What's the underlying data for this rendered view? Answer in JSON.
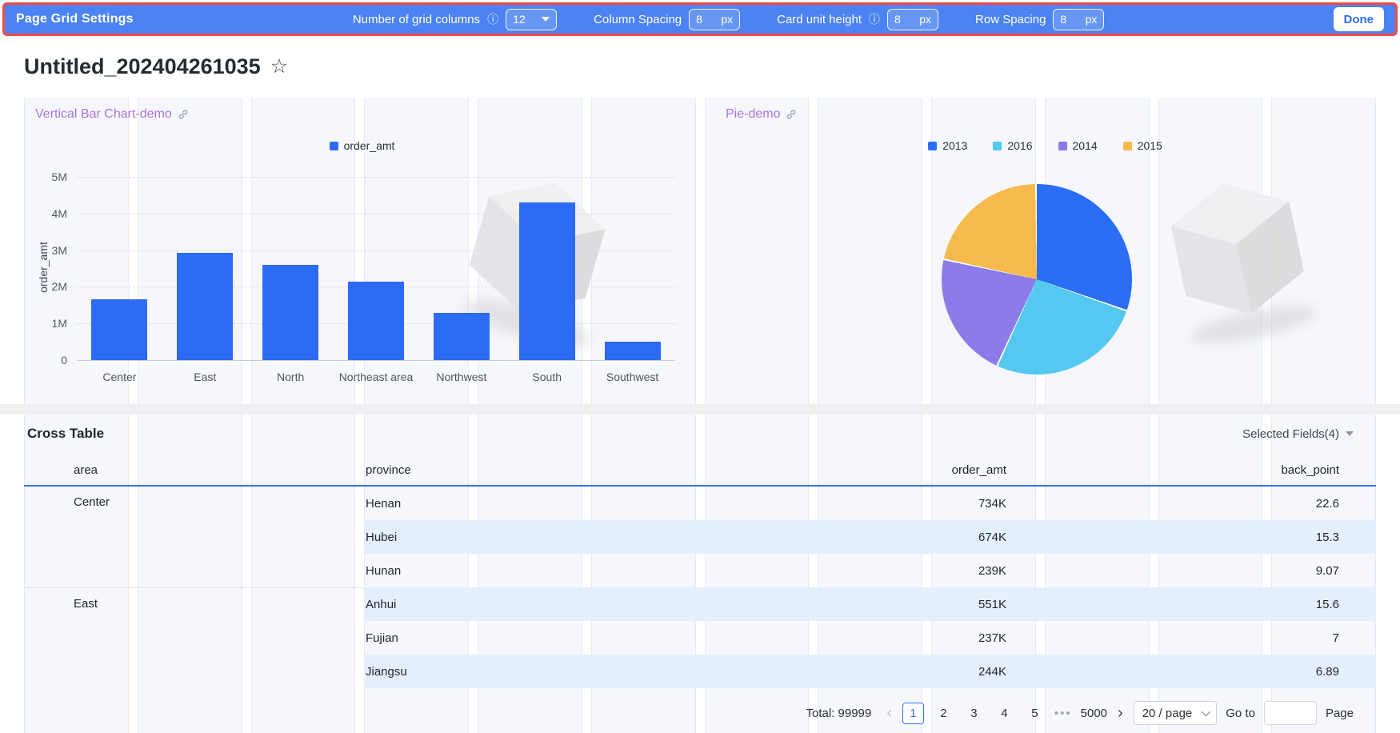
{
  "topbar": {
    "title": "Page Grid Settings",
    "grid_columns_label": "Number of grid columns",
    "grid_columns_value": "12",
    "column_spacing_label": "Column Spacing",
    "column_spacing_value": "8",
    "card_unit_height_label": "Card unit height",
    "card_unit_height_value": "8",
    "row_spacing_label": "Row Spacing",
    "row_spacing_value": "8",
    "unit": "px",
    "info_icon": "ⓘ",
    "done_label": "Done"
  },
  "page": {
    "title": "Untitled_202404261035",
    "star_icon": "☆",
    "grid_column_count": 12
  },
  "chart_data": [
    {
      "type": "bar",
      "title": "Vertical Bar Chart-demo",
      "categories": [
        "Center",
        "East",
        "North",
        "Northeast area",
        "Northwest",
        "South",
        "Southwest"
      ],
      "values": [
        1660000,
        2930000,
        2600000,
        2140000,
        1290000,
        4300000,
        500000
      ],
      "series_name": "order_amt",
      "xlabel": "",
      "ylabel": "order_amt",
      "ylim": [
        0,
        5000000
      ],
      "yticks": [
        "5M",
        "4M",
        "3M",
        "2M",
        "1M",
        "0"
      ],
      "grid": "horizontal dashed",
      "legend_position": "top-center",
      "bar_color": "#2e6bf5"
    },
    {
      "type": "pie",
      "title": "Pie-demo",
      "legend_position": "top-center",
      "series": [
        {
          "name": "2013",
          "percent": 30.5,
          "color": "#2b6df3"
        },
        {
          "name": "2016",
          "percent": 26.5,
          "color": "#54c8f0"
        },
        {
          "name": "2014",
          "percent": 21.5,
          "color": "#8c7be9"
        },
        {
          "name": "2015",
          "percent": 21.5,
          "color": "#f5ba4b"
        }
      ]
    }
  ],
  "table": {
    "title": "Cross Table",
    "selected_fields_label": "Selected Fields(4)",
    "columns": [
      "area",
      "province",
      "order_amt",
      "back_point"
    ],
    "groups": [
      {
        "area": "Center",
        "rows": [
          {
            "province": "Henan",
            "order_amt": "734K",
            "back_point": "22.6"
          },
          {
            "province": "Hubei",
            "order_amt": "674K",
            "back_point": "15.3"
          },
          {
            "province": "Hunan",
            "order_amt": "239K",
            "back_point": "9.07"
          }
        ]
      },
      {
        "area": "East",
        "rows": [
          {
            "province": "Anhui",
            "order_amt": "551K",
            "back_point": "15.6"
          },
          {
            "province": "Fujian",
            "order_amt": "237K",
            "back_point": "7"
          },
          {
            "province": "Jiangsu",
            "order_amt": "244K",
            "back_point": "6.89"
          }
        ]
      }
    ],
    "pagination": {
      "total_label": "Total: 99999",
      "prev_icon": "‹",
      "pages": [
        "1",
        "2",
        "3",
        "4",
        "5"
      ],
      "current_page": "1",
      "ellipsis": "•••",
      "last_page": "5000",
      "next_icon": "›",
      "page_size_label": "20 / page",
      "goto_label": "Go to",
      "page_word": "Page"
    }
  },
  "colors": {
    "topbar_blue": "#4b83f2",
    "topbar_border_red": "#f54a43",
    "accent_blue": "#3470f2",
    "chart_title_purple": "#a873db",
    "bar_blue": "#2e6bf5",
    "shaded_row": "#e3eefc",
    "grid_stripe": "#f5f7fd"
  }
}
